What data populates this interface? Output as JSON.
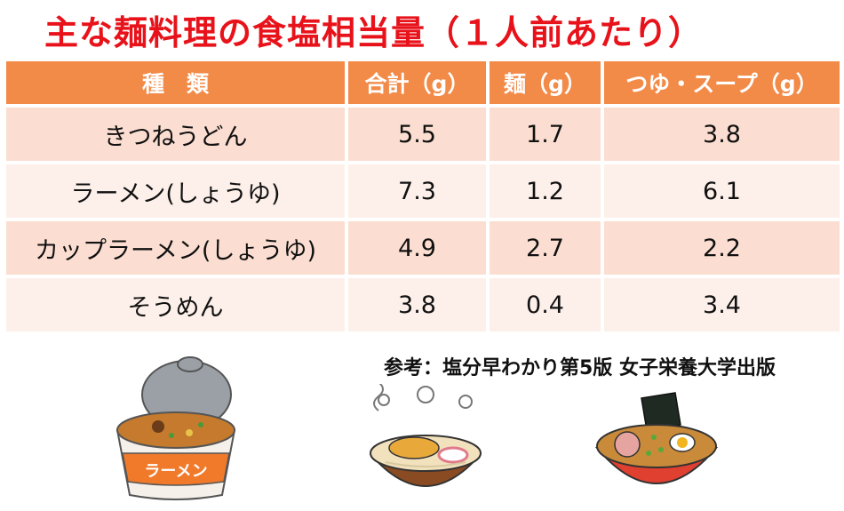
{
  "title": "主な麺料理の食塩相当量（１人前あたり）",
  "table": {
    "headers": [
      "種　類",
      "合計（g）",
      "麺（g）",
      "つゆ・スープ（g）"
    ],
    "rows": [
      {
        "name": "きつねうどん",
        "total": "5.5",
        "noodle": "1.7",
        "soup": "3.8"
      },
      {
        "name": "ラーメン(しょうゆ)",
        "total": "7.3",
        "noodle": "1.2",
        "soup": "6.1"
      },
      {
        "name": "カップラーメン(しょうゆ)",
        "total": "4.9",
        "noodle": "2.7",
        "soup": "2.2"
      },
      {
        "name": "そうめん",
        "total": "3.8",
        "noodle": "0.4",
        "soup": "3.4"
      }
    ]
  },
  "reference": "参考：塩分早わかり第5版 女子栄養大学出版",
  "illustrations": {
    "cup_noodle_label": "ラーメン",
    "cup_noodle_color": "#f07a2a",
    "udon_bowl_color": "#8a4a22",
    "ramen_bowl_color": "#e04030"
  }
}
